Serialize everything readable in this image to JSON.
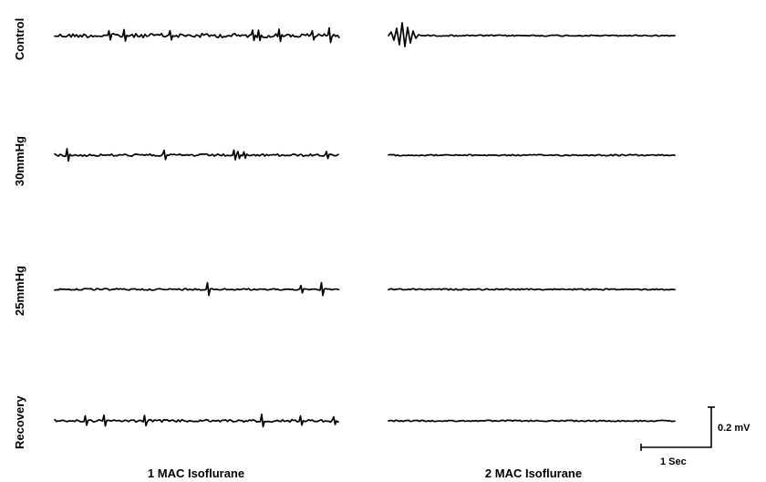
{
  "chart_data": {
    "type": "line",
    "rows": [
      {
        "label": "Control",
        "traces": [
          {
            "activity": "moderate",
            "initial_burst": false
          },
          {
            "activity": "flat",
            "initial_burst": true
          }
        ]
      },
      {
        "label": "30mmHg",
        "traces": [
          {
            "activity": "sparse_spikes",
            "initial_burst": false
          },
          {
            "activity": "flat",
            "initial_burst": false
          }
        ]
      },
      {
        "label": "25mmHg",
        "traces": [
          {
            "activity": "few_spikes",
            "initial_burst": false
          },
          {
            "activity": "flat",
            "initial_burst": false
          }
        ]
      },
      {
        "label": "Recovery",
        "traces": [
          {
            "activity": "sparse_spikes",
            "initial_burst": false
          },
          {
            "activity": "flat",
            "initial_burst": false
          }
        ]
      }
    ],
    "columns": [
      "1 MAC Isoflurane",
      "2 MAC Isoflurane"
    ],
    "scale_bar": {
      "voltage_label": "0.2 mV",
      "time_label": "1 Sec"
    }
  }
}
